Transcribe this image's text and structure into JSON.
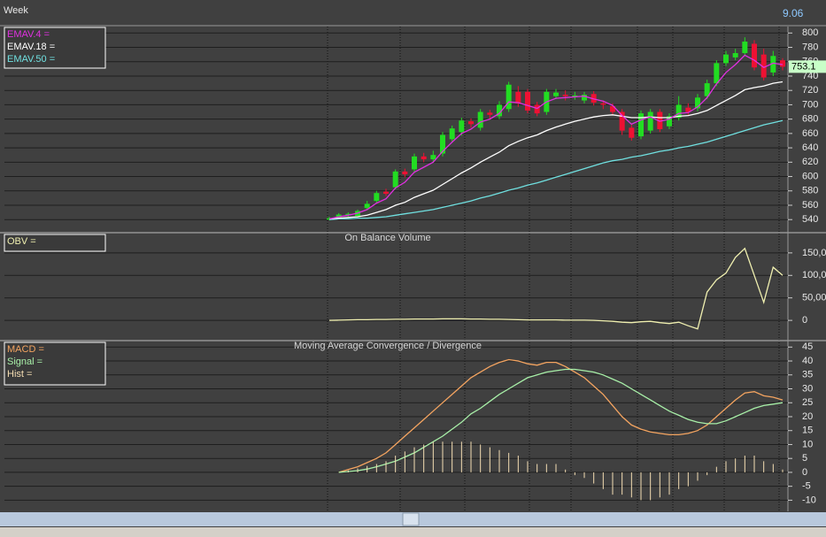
{
  "header": {
    "period": "Week",
    "version": "9.06"
  },
  "chart_data": [
    {
      "type": "candlestick",
      "open": [
        540,
        543,
        546,
        545,
        556,
        566,
        579,
        585,
        607,
        610,
        628,
        624,
        632,
        652,
        662,
        677,
        668,
        689,
        684,
        694,
        718,
        718,
        700,
        690,
        712,
        714,
        711,
        706,
        715,
        702,
        698,
        690,
        668,
        656,
        664,
        690,
        670,
        682,
        696,
        695,
        712,
        730,
        758,
        766,
        772,
        785,
        770,
        745,
        762
      ],
      "high": [
        544,
        549,
        550,
        554,
        566,
        580,
        583,
        610,
        611,
        632,
        633,
        636,
        662,
        671,
        682,
        681,
        694,
        693,
        705,
        732,
        726,
        722,
        704,
        722,
        722,
        720,
        718,
        718,
        719,
        706,
        702,
        694,
        672,
        692,
        694,
        694,
        688,
        712,
        702,
        715,
        735,
        762,
        775,
        778,
        794,
        790,
        778,
        775,
        765
      ],
      "low": [
        539,
        541,
        544,
        543,
        554,
        563,
        573,
        582,
        599,
        606,
        620,
        620,
        628,
        648,
        657,
        668,
        664,
        680,
        680,
        690,
        697,
        688,
        684,
        686,
        708,
        706,
        707,
        702,
        699,
        694,
        686,
        658,
        650,
        652,
        660,
        662,
        666,
        678,
        686,
        691,
        708,
        726,
        754,
        762,
        768,
        748,
        734,
        740,
        748
      ],
      "close": [
        542,
        547,
        548,
        552,
        562,
        577,
        576,
        607,
        603,
        628,
        624,
        630,
        658,
        667,
        678,
        673,
        690,
        686,
        700,
        728,
        702,
        692,
        688,
        718,
        717,
        712,
        713,
        714,
        703,
        700,
        690,
        664,
        654,
        688,
        690,
        666,
        684,
        700,
        690,
        710,
        730,
        758,
        770,
        772,
        788,
        752,
        738,
        768,
        753
      ],
      "up_color": "#22dd22",
      "down_color": "#ee1133",
      "series": [
        {
          "name": "EMAV.4 =",
          "color": "#e030e0",
          "values": [
            541,
            544,
            546,
            549,
            554,
            563,
            569,
            584,
            592,
            606,
            613,
            620,
            635,
            648,
            660,
            666,
            676,
            680,
            688,
            704,
            703,
            699,
            695,
            704,
            709,
            710,
            711,
            712,
            708,
            705,
            699,
            685,
            673,
            679,
            683,
            677,
            680,
            688,
            689,
            697,
            710,
            729,
            745,
            756,
            769,
            762,
            752,
            758,
            756
          ]
        },
        {
          "name": "EMAV.18 =",
          "color": "#ffffff",
          "values": [
            541,
            542,
            543,
            544,
            546,
            550,
            554,
            560,
            564,
            571,
            576,
            581,
            589,
            597,
            605,
            612,
            620,
            627,
            634,
            643,
            649,
            654,
            658,
            664,
            669,
            673,
            677,
            680,
            683,
            685,
            686,
            684,
            682,
            682,
            683,
            682,
            682,
            684,
            685,
            688,
            692,
            699,
            706,
            713,
            721,
            724,
            726,
            730,
            732
          ]
        },
        {
          "name": "EMAV.50 =",
          "color": "#70e0e0",
          "values": [
            540,
            541,
            541,
            542,
            542,
            543,
            544,
            546,
            548,
            550,
            552,
            554,
            557,
            560,
            563,
            566,
            570,
            573,
            577,
            581,
            584,
            588,
            591,
            595,
            599,
            603,
            607,
            611,
            615,
            619,
            622,
            624,
            627,
            629,
            632,
            635,
            637,
            640,
            642,
            645,
            648,
            652,
            656,
            660,
            664,
            668,
            672,
            675,
            678
          ]
        }
      ],
      "ylim": [
        523,
        809
      ],
      "yticks": [
        540,
        560,
        580,
        600,
        620,
        640,
        660,
        680,
        700,
        720,
        740,
        760,
        780,
        800
      ],
      "grid": true,
      "last_value": 753.1,
      "last_value_color": "#c8ffc8"
    },
    {
      "type": "line",
      "title": "On Balance Volume",
      "series": [
        {
          "name": "OBV =",
          "color": "#f0f0b0",
          "values": [
            0,
            500,
            1000,
            1500,
            1500,
            2000,
            2000,
            2500,
            2500,
            3000,
            3000,
            3000,
            3500,
            3500,
            3500,
            3000,
            3000,
            2500,
            2500,
            2000,
            1500,
            1000,
            1000,
            1000,
            1000,
            500,
            500,
            500,
            0,
            -1000,
            -2000,
            -4000,
            -5000,
            -3000,
            -2000,
            -5000,
            -7000,
            -4000,
            -12000,
            -19000,
            63000,
            90000,
            105000,
            140000,
            160000,
            100000,
            40000,
            118000,
            100000
          ]
        }
      ],
      "ylim": [
        -43000,
        193000
      ],
      "yticks": [
        0,
        {
          "value": 50000,
          "label": "50,00"
        },
        {
          "value": 100000,
          "label": "100,0"
        },
        {
          "value": 150000,
          "label": "150,0"
        }
      ],
      "grid": true
    },
    {
      "type": "macd",
      "title": "Moving Average Convergence / Divergence",
      "series": [
        {
          "name": "MACD =",
          "color": "#f4a460",
          "values": [
            null,
            0,
            1,
            2,
            3.5,
            5,
            7,
            10,
            13,
            16,
            19,
            22,
            25,
            28,
            31,
            34,
            36,
            38,
            39.5,
            40.5,
            40,
            39,
            38.5,
            39.5,
            39.5,
            38,
            36,
            34,
            31,
            28,
            24,
            20,
            17,
            15.5,
            14.5,
            14,
            13.5,
            13.5,
            14,
            15,
            17,
            20,
            23,
            26,
            28.5,
            29,
            27.5,
            27,
            26
          ]
        },
        {
          "name": "Signal =",
          "color": "#a8f0a8",
          "values": [
            null,
            0,
            0.3,
            0.6,
            1.2,
            2,
            3,
            4,
            5.5,
            7,
            9,
            11,
            13,
            15.5,
            18,
            21,
            23,
            25.5,
            28,
            30,
            32,
            34,
            35,
            36,
            36.5,
            37,
            37,
            36.5,
            36,
            35,
            33.5,
            32,
            30,
            28,
            26,
            24,
            22,
            20.5,
            19,
            18,
            17.5,
            17.5,
            18.5,
            20,
            21.5,
            23,
            24,
            24.5,
            25
          ]
        },
        {
          "name": "Hist =",
          "color": "#f5deb3",
          "style": "bars",
          "values": [
            null,
            0,
            0.7,
            1.4,
            2.3,
            3,
            4,
            6,
            7.5,
            9,
            10,
            11,
            11,
            11,
            11,
            11,
            10,
            9,
            8,
            7,
            6,
            4,
            3,
            3,
            3,
            1,
            -1,
            -2,
            -4,
            -6,
            -8,
            -8,
            -9,
            -10,
            -10,
            -9,
            -8,
            -6,
            -5,
            -3,
            -1,
            2,
            4,
            5,
            6,
            6,
            4,
            3,
            1
          ]
        }
      ],
      "ylim": [
        -14,
        47
      ],
      "yticks": [
        -10,
        -5,
        0,
        5,
        10,
        15,
        20,
        25,
        30,
        35,
        40,
        45
      ],
      "grid": true
    }
  ]
}
